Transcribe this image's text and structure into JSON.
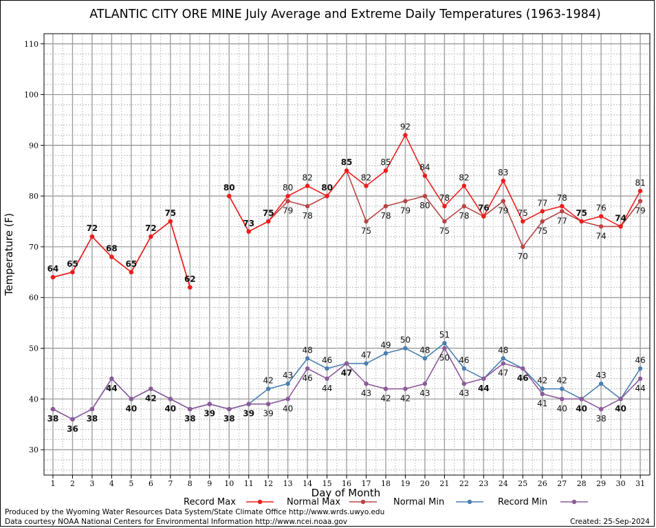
{
  "chart_data": {
    "type": "line",
    "title": "ATLANTIC CITY ORE MINE July Average and Extreme Daily Temperatures (1963-1984)",
    "xlabel": "Day of Month",
    "ylabel": "Temperature (F)",
    "ylim": [
      25,
      112
    ],
    "y_ticks": [
      30,
      40,
      50,
      60,
      70,
      80,
      90,
      100,
      110
    ],
    "x": [
      1,
      2,
      3,
      4,
      5,
      6,
      7,
      8,
      9,
      10,
      11,
      12,
      13,
      14,
      15,
      16,
      17,
      18,
      19,
      20,
      21,
      22,
      23,
      24,
      25,
      26,
      27,
      28,
      29,
      30,
      31
    ],
    "grid": true,
    "legend_position": "bottom",
    "series": [
      {
        "name": "Record Max",
        "color": "#ee1c1c",
        "values": [
          64,
          65,
          72,
          68,
          65,
          72,
          75,
          62,
          null,
          80,
          73,
          75,
          80,
          82,
          80,
          85,
          82,
          85,
          92,
          84,
          78,
          82,
          76,
          83,
          75,
          77,
          78,
          75,
          76,
          74,
          81
        ]
      },
      {
        "name": "Normal Max",
        "color": "#b84545",
        "values": [
          64,
          65,
          72,
          68,
          65,
          72,
          75,
          62,
          null,
          80,
          73,
          75,
          79,
          78,
          80,
          85,
          75,
          78,
          79,
          80,
          75,
          78,
          76,
          79,
          70,
          75,
          77,
          75,
          74,
          74,
          79
        ]
      },
      {
        "name": "Normal Min",
        "color": "#4a7fb0",
        "values": [
          38,
          36,
          38,
          44,
          40,
          42,
          40,
          38,
          39,
          38,
          39,
          42,
          43,
          48,
          46,
          47,
          47,
          49,
          50,
          48,
          51,
          46,
          44,
          48,
          46,
          42,
          42,
          40,
          43,
          40,
          46
        ]
      },
      {
        "name": "Record Min",
        "color": "#8b5a9a",
        "values": [
          38,
          36,
          38,
          44,
          40,
          42,
          40,
          38,
          39,
          38,
          39,
          39,
          40,
          46,
          44,
          47,
          43,
          42,
          42,
          43,
          50,
          43,
          44,
          47,
          46,
          41,
          40,
          40,
          38,
          40,
          44
        ]
      }
    ]
  },
  "footer": {
    "produced": "Produced by the Wyoming Water Resources Data System/State Climate Office http://www.wrds.uwyo.edu",
    "courtesy": "Data courtesy NOAA National Centers for Environmental Information http://www.ncei.noaa.gov",
    "created": "Created:  25-Sep-2024"
  }
}
